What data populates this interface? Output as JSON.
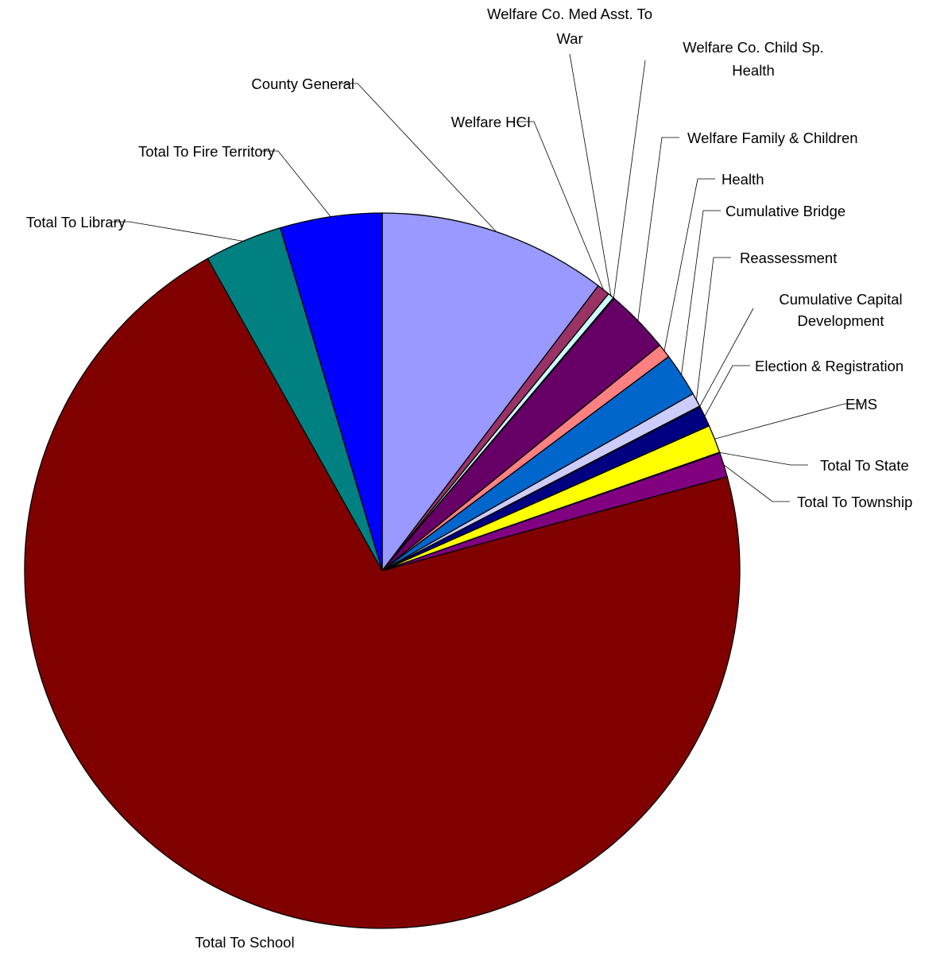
{
  "chart_data": {
    "type": "pie",
    "title": "",
    "start_angle_deg": 0,
    "direction": "clockwise",
    "slices": [
      {
        "label": "County General",
        "value": 10.28,
        "color": "#9999FF"
      },
      {
        "label": "Welfare HCI",
        "value": 0.58,
        "color": "#993366"
      },
      {
        "label": "Welfare Co. Med Asst. To War",
        "value": 0.28,
        "color": "#CCFFFF"
      },
      {
        "label": "Welfare Co. Child Sp. Health",
        "value": 0.03,
        "color": "#FFFFCC"
      },
      {
        "label": "Welfare Family & Children",
        "value": 2.91,
        "color": "#660066"
      },
      {
        "label": "Health",
        "value": 0.64,
        "color": "#FF8080"
      },
      {
        "label": "Cumulative Bridge",
        "value": 1.97,
        "color": "#0066CC"
      },
      {
        "label": "Reassessment",
        "value": 0.62,
        "color": "#CCCCFF"
      },
      {
        "label": "Cumulative Capital Development",
        "value": 0.03,
        "color": "#000080"
      },
      {
        "label": "Election & Registration",
        "value": 0.94,
        "color": "#000080"
      },
      {
        "label": "EMS",
        "value": 1.26,
        "color": "#FFFF00"
      },
      {
        "label": "Total To State",
        "value": 0.03,
        "color": "#00FFFF"
      },
      {
        "label": "Total To Township",
        "value": 1.11,
        "color": "#800080"
      },
      {
        "label": "Total To School",
        "value": 70.78,
        "color": "#800000"
      },
      {
        "label": "Total To Library",
        "value": 3.5,
        "color": "#008080"
      },
      {
        "label": "Total To Fire Territory",
        "value": 4.58,
        "color": "#0000FF"
      }
    ]
  }
}
